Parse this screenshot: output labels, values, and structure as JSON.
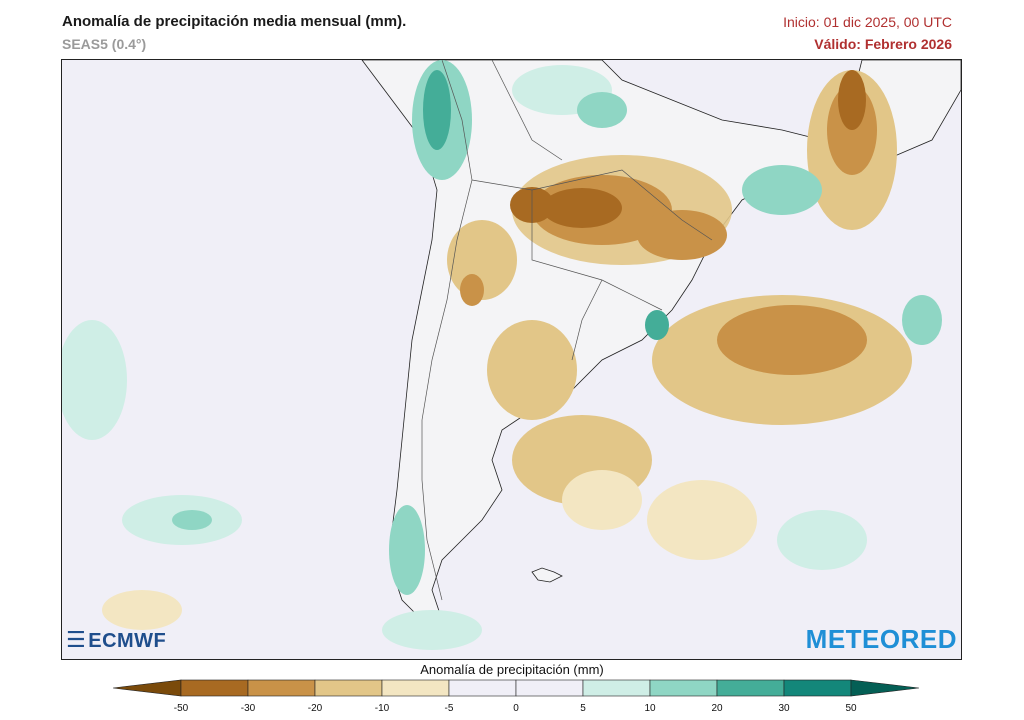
{
  "header": {
    "title": "Anomalía de precipitación media mensual (mm).",
    "subtitle": "SEAS5 (0.4°)",
    "init": "Inicio: 01 dic 2025, 00 UTC",
    "valid": "Válido: Febrero 2026"
  },
  "logos": {
    "left": "ECMWF",
    "right": "METEORED"
  },
  "legend": {
    "title": "Anomalía de precipitación (mm)",
    "ticks": [
      "-50",
      "-30",
      "-20",
      "-10",
      "-5",
      "0",
      "5",
      "10",
      "20",
      "30",
      "50"
    ],
    "colors": [
      "#7a4a0a",
      "#a86a22",
      "#c99248",
      "#e2c688",
      "#f3e6c2",
      "#f0eff7",
      "#f0eff7",
      "#cfeee6",
      "#8fd6c4",
      "#44ad98",
      "#13877a",
      "#045f55"
    ]
  },
  "colors": {
    "accent_red": "#b03030",
    "ocean_background": "#f0eff7",
    "land_background": "#f4f4f6"
  }
}
